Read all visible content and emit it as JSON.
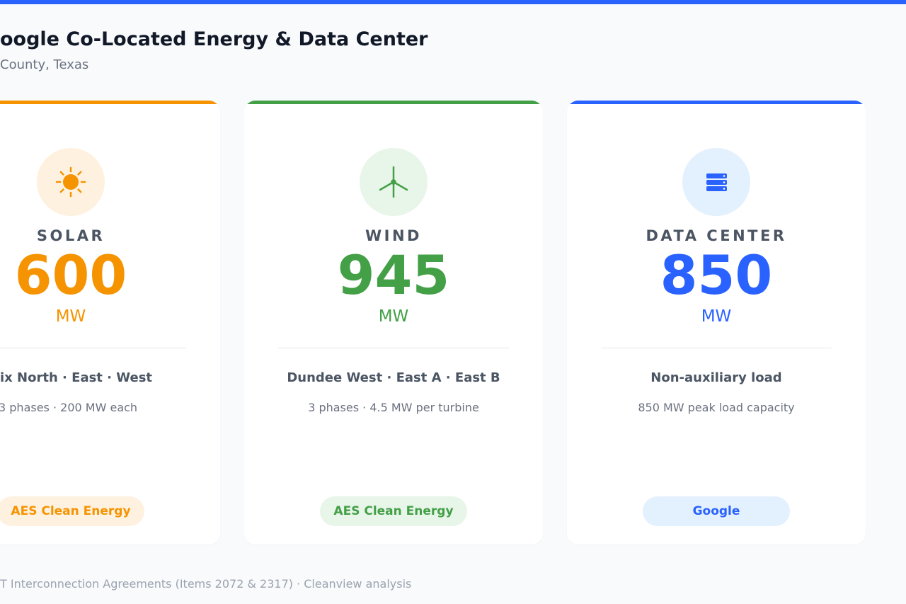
{
  "header": {
    "title": "oogle Co-Located Energy & Data Center",
    "subtitle": "County, Texas"
  },
  "cards": [
    {
      "label": "SOLAR",
      "value": 600,
      "unit": "MW",
      "name": "ix North · East · West",
      "detail": "3 phases · 200 MW each",
      "badge": "AES Clean Energy",
      "color": "#f59300",
      "tint": "#fef1df"
    },
    {
      "label": "WIND",
      "value": 945,
      "unit": "MW",
      "name": "Dundee West · East A · East B",
      "detail": "3 phases · 4.5 MW per turbine",
      "badge": "AES Clean Energy",
      "color": "#43a047",
      "tint": "#e8f5e9"
    },
    {
      "label": "DATA CENTER",
      "value": 850,
      "unit": "MW",
      "name": "Non-auxiliary load",
      "detail": "850 MW peak load capacity",
      "badge": "Google",
      "color": "#2962ff",
      "tint": "#e3f0fd"
    }
  ],
  "footer": "T Interconnection Agreements (Items 2072 & 2317) · Cleanview analysis"
}
